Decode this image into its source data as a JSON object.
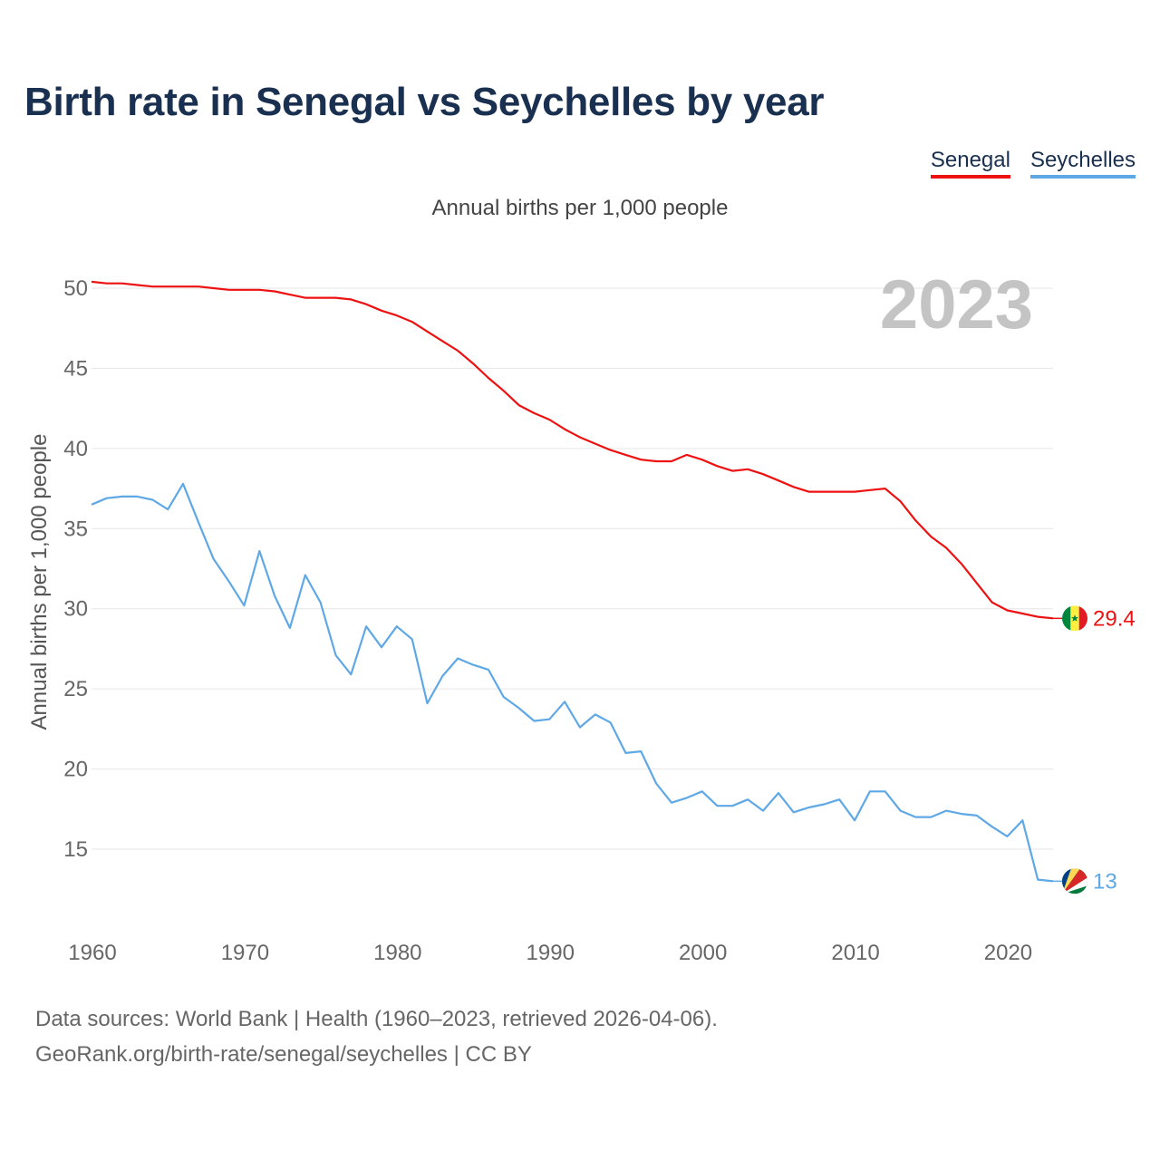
{
  "header": {
    "title": "Birth rate in Senegal vs Seychelles by year",
    "subtitle": "Annual births per 1,000 people"
  },
  "legend": [
    {
      "label": "Senegal",
      "color": "#ee1111"
    },
    {
      "label": "Seychelles",
      "color": "#5fa8e6"
    }
  ],
  "year_watermark": "2023",
  "footer": {
    "line1": "Data sources: World Bank | Health (1960–2023, retrieved 2026-04-06).",
    "line2": "GeoRank.org/birth-rate/senegal/seychelles | CC BY"
  },
  "chart_data": {
    "type": "line",
    "title": "Birth rate in Senegal vs Seychelles by year",
    "ylabel": "Annual births per 1,000 people",
    "xlabel": "",
    "xlim": [
      1960,
      2023
    ],
    "ylim": [
      11,
      52
    ],
    "x_ticks": [
      1960,
      1970,
      1980,
      1990,
      2000,
      2010,
      2020
    ],
    "y_ticks": [
      15,
      20,
      25,
      30,
      35,
      40,
      45,
      50
    ],
    "grid": true,
    "legend_position": "top-right",
    "x": [
      1960,
      1961,
      1962,
      1963,
      1964,
      1965,
      1966,
      1967,
      1968,
      1969,
      1970,
      1971,
      1972,
      1973,
      1974,
      1975,
      1976,
      1977,
      1978,
      1979,
      1980,
      1981,
      1982,
      1983,
      1984,
      1985,
      1986,
      1987,
      1988,
      1989,
      1990,
      1991,
      1992,
      1993,
      1994,
      1995,
      1996,
      1997,
      1998,
      1999,
      2000,
      2001,
      2002,
      2003,
      2004,
      2005,
      2006,
      2007,
      2008,
      2009,
      2010,
      2011,
      2012,
      2013,
      2014,
      2015,
      2016,
      2017,
      2018,
      2019,
      2020,
      2021,
      2022,
      2023
    ],
    "series": [
      {
        "name": "Senegal",
        "color": "#ee1111",
        "end_label": "29.4",
        "values": [
          50.4,
          50.3,
          50.3,
          50.2,
          50.1,
          50.1,
          50.1,
          50.1,
          50.0,
          49.9,
          49.9,
          49.9,
          49.8,
          49.6,
          49.4,
          49.4,
          49.4,
          49.3,
          49.0,
          48.6,
          48.3,
          47.9,
          47.3,
          46.7,
          46.1,
          45.3,
          44.4,
          43.6,
          42.7,
          42.2,
          41.8,
          41.2,
          40.7,
          40.3,
          39.9,
          39.6,
          39.3,
          39.2,
          39.2,
          39.6,
          39.3,
          38.9,
          38.6,
          38.7,
          38.4,
          38.0,
          37.6,
          37.3,
          37.3,
          37.3,
          37.3,
          37.4,
          37.5,
          36.7,
          35.5,
          34.5,
          33.8,
          32.8,
          31.6,
          30.4,
          29.9,
          29.7,
          29.5,
          29.4
        ]
      },
      {
        "name": "Seychelles",
        "color": "#5fa8e6",
        "end_label": "13",
        "values": [
          36.5,
          36.9,
          37.0,
          37.0,
          36.8,
          36.2,
          37.8,
          35.4,
          33.1,
          31.7,
          30.2,
          33.6,
          30.8,
          28.8,
          32.1,
          30.4,
          27.1,
          25.9,
          28.9,
          27.6,
          28.9,
          28.1,
          24.1,
          25.8,
          26.9,
          26.5,
          26.2,
          24.5,
          23.8,
          23.0,
          23.1,
          24.2,
          22.6,
          23.4,
          22.9,
          21.0,
          21.1,
          19.1,
          17.9,
          18.2,
          18.6,
          17.7,
          17.7,
          18.1,
          17.4,
          18.5,
          17.3,
          17.6,
          17.8,
          18.1,
          16.8,
          18.6,
          18.6,
          17.4,
          17.0,
          17.0,
          17.4,
          17.2,
          17.1,
          16.4,
          15.8,
          16.8,
          13.1,
          13.0
        ]
      }
    ]
  }
}
